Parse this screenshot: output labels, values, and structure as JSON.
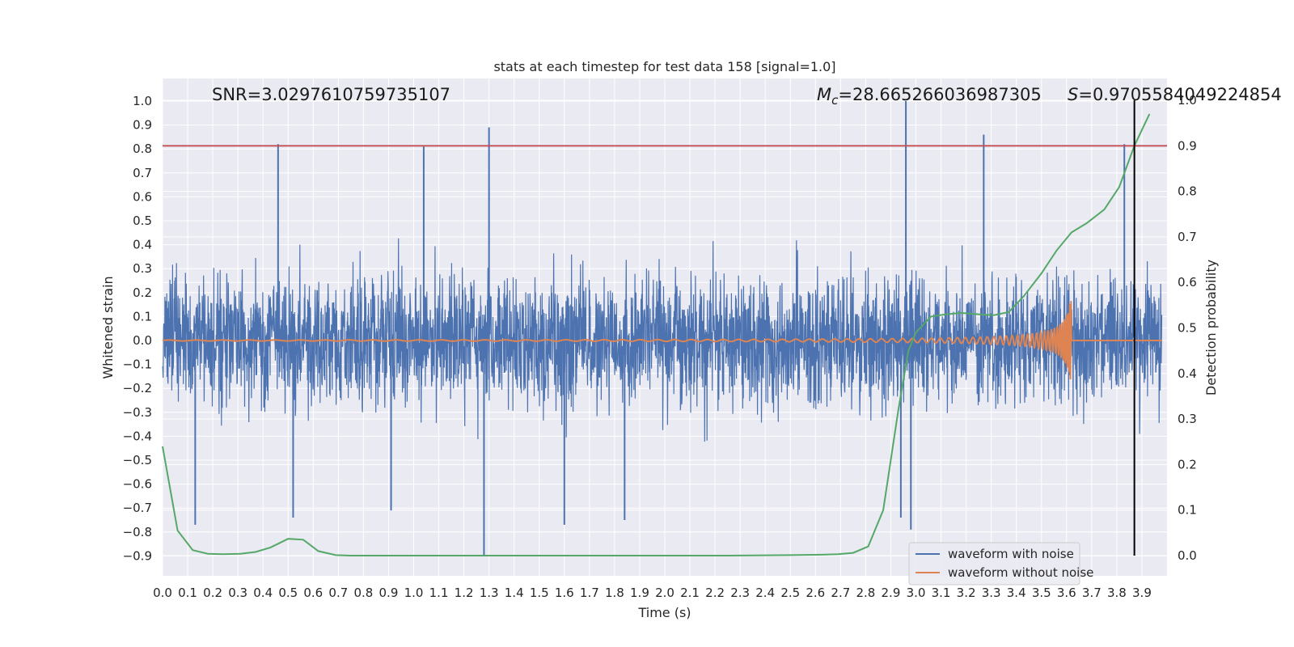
{
  "chart_data": {
    "type": "line",
    "title": "stats at each timestep for test data 158 [signal=1.0]",
    "xlabel": "Time (s)",
    "ylabel": "Whitened strain",
    "y2label": "Detection probability",
    "xlim": [
      0.0,
      4.0
    ],
    "ylim": [
      -1.0,
      1.1
    ],
    "y2lim": [
      -0.05,
      1.0
    ],
    "grid": true,
    "legend_position": "lower-right",
    "x_ticks": [
      0.0,
      0.1,
      0.2,
      0.3,
      0.4,
      0.5,
      0.6,
      0.7,
      0.8,
      0.9,
      1.0,
      1.1,
      1.2,
      1.3,
      1.4,
      1.5,
      1.6,
      1.7,
      1.8,
      1.9,
      2.0,
      2.1,
      2.2,
      2.3,
      2.4,
      2.5,
      2.6,
      2.7,
      2.8,
      2.9,
      3.0,
      3.1,
      3.2,
      3.3,
      3.4,
      3.5,
      3.6,
      3.7,
      3.8,
      3.9
    ],
    "x_tick_labels": [
      "0.0",
      "0.1",
      "0.2",
      "0.3",
      "0.4",
      "0.5",
      "0.6",
      "0.7",
      "0.8",
      "0.9",
      "1.0",
      "1.1",
      "1.2",
      "1.3",
      "1.4",
      "1.5",
      "1.6",
      "1.7",
      "1.8",
      "1.9",
      "2.0",
      "2.1",
      "2.2",
      "2.3",
      "2.4",
      "2.5",
      "2.6",
      "2.7",
      "2.8",
      "2.9",
      "3.0",
      "3.1",
      "3.2",
      "3.3",
      "3.4",
      "3.5",
      "3.6",
      "3.7",
      "3.8",
      "3.9"
    ],
    "y_ticks": [
      -0.9,
      -0.8,
      -0.7,
      -0.6,
      -0.5,
      -0.4,
      -0.3,
      -0.2,
      -0.1,
      0.0,
      0.1,
      0.2,
      0.3,
      0.4,
      0.5,
      0.6,
      0.7,
      0.8,
      0.9,
      1.0
    ],
    "y_tick_labels": [
      "−0.9",
      "−0.8",
      "−0.7",
      "−0.6",
      "−0.5",
      "−0.4",
      "−0.3",
      "−0.2",
      "−0.1",
      "0.0",
      "0.1",
      "0.2",
      "0.3",
      "0.4",
      "0.5",
      "0.6",
      "0.7",
      "0.8",
      "0.9",
      "1.0"
    ],
    "y2_ticks": [
      0.0,
      0.1,
      0.2,
      0.3,
      0.4,
      0.5,
      0.6,
      0.7,
      0.8,
      0.9,
      1.0
    ],
    "y2_tick_labels": [
      "0.0",
      "0.1",
      "0.2",
      "0.3",
      "0.4",
      "0.5",
      "0.6",
      "0.7",
      "0.8",
      "0.9",
      "1.0"
    ],
    "annotations": {
      "snr": "SNR=3.0297610759735107",
      "mc_symbol": "M",
      "mc_sub": "c",
      "mc_value": "=28.665266036987305",
      "s_symbol": "S",
      "s_value": "=0.9705584049224854"
    },
    "threshold_y2": 0.9,
    "detection_time": 3.87,
    "colors": {
      "noise": "#4c72b0",
      "clean": "#dd8452",
      "probability": "#55a868",
      "threshold": "#c44e52",
      "detection_line": "#000000",
      "background": "#eaeaf2",
      "grid": "#ffffff"
    },
    "series": [
      {
        "name": "waveform with noise",
        "axis": "left",
        "description_envelope": "noise amplitude mostly within -0.6 to 0.7 with spikes",
        "spikes": [
          {
            "x": 0.46,
            "y": 0.82
          },
          {
            "x": 1.04,
            "y": 0.81
          },
          {
            "x": 1.3,
            "y": 0.89
          },
          {
            "x": 2.96,
            "y": 1.0
          },
          {
            "x": 3.27,
            "y": 0.86
          },
          {
            "x": 3.83,
            "y": 0.82
          },
          {
            "x": 0.13,
            "y": -0.77
          },
          {
            "x": 0.52,
            "y": -0.74
          },
          {
            "x": 1.28,
            "y": -0.9
          },
          {
            "x": 1.6,
            "y": -0.77
          },
          {
            "x": 1.84,
            "y": -0.75
          },
          {
            "x": 2.98,
            "y": -0.79
          },
          {
            "x": 2.94,
            "y": -0.74
          },
          {
            "x": 0.91,
            "y": -0.71
          }
        ]
      },
      {
        "name": "waveform without noise",
        "axis": "left",
        "chirp_start": 0.0,
        "chirp_end": 3.62,
        "amplitude_max": 0.17
      },
      {
        "name": "",
        "axis": "right",
        "x": [
          0.0,
          0.06,
          0.12,
          0.18,
          0.24,
          0.31,
          0.37,
          0.43,
          0.5,
          0.56,
          0.62,
          0.69,
          0.75,
          0.81,
          0.87,
          0.93,
          1.0,
          1.25,
          1.5,
          1.75,
          2.0,
          2.25,
          2.5,
          2.62,
          2.69,
          2.75,
          2.81,
          2.87,
          2.93,
          2.97,
          3.0,
          3.06,
          3.12,
          3.18,
          3.25,
          3.31,
          3.37,
          3.43,
          3.5,
          3.56,
          3.62,
          3.68,
          3.75,
          3.81,
          3.87,
          3.93
        ],
        "values": [
          0.24,
          0.055,
          0.012,
          0.004,
          0.003,
          0.004,
          0.008,
          0.018,
          0.037,
          0.035,
          0.01,
          0.001,
          0.0,
          0.0,
          0.0,
          0.0,
          0.0,
          0.0,
          0.0,
          0.0,
          0.0,
          0.0,
          0.001,
          0.002,
          0.003,
          0.006,
          0.02,
          0.1,
          0.32,
          0.45,
          0.49,
          0.525,
          0.53,
          0.533,
          0.53,
          0.528,
          0.535,
          0.57,
          0.62,
          0.67,
          0.71,
          0.73,
          0.76,
          0.81,
          0.9,
          0.97
        ]
      }
    ]
  }
}
